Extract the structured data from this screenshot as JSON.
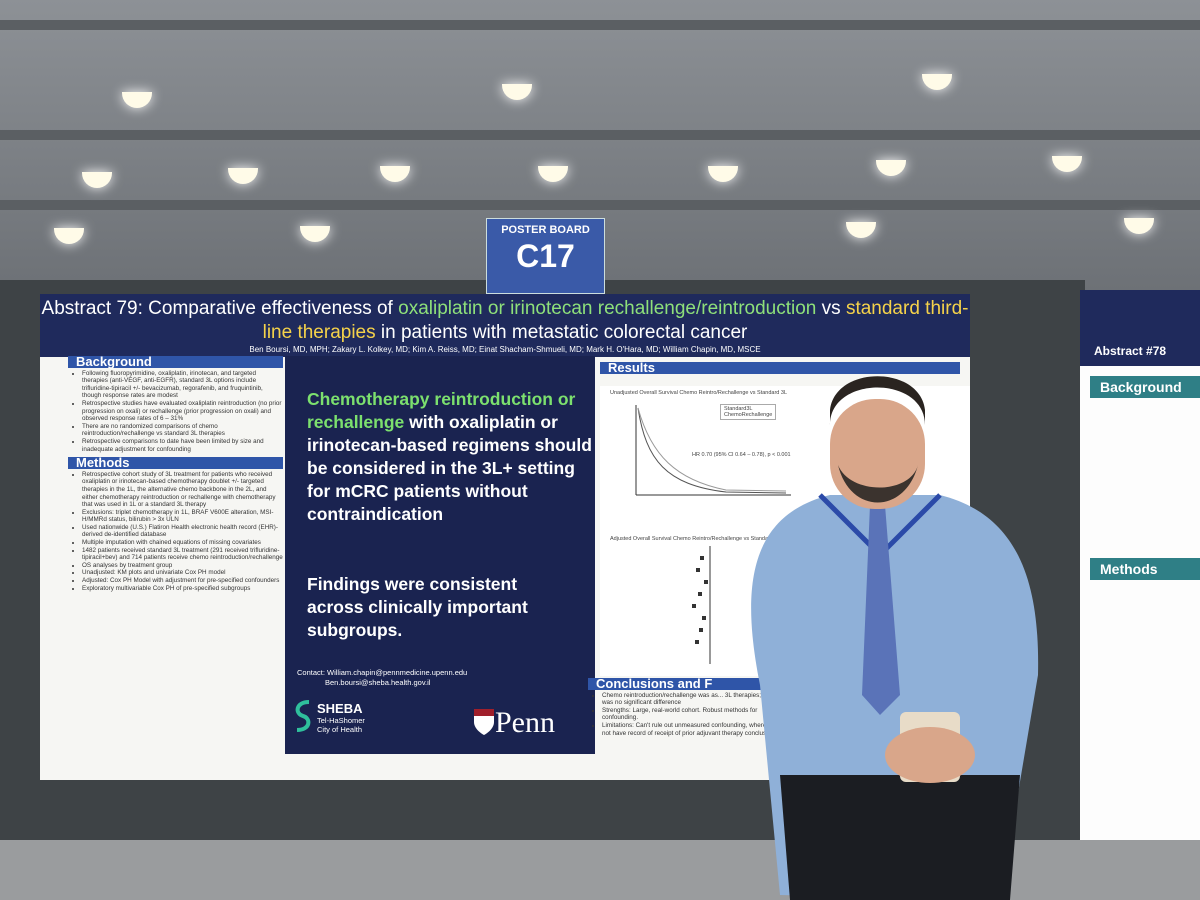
{
  "sign": {
    "label": "POSTER BOARD",
    "board": "C17"
  },
  "poster": {
    "title": {
      "prefix": "Abstract 79: Comparative effectiveness of",
      "drug": "oxaliplatin or irinotecan rechallenge/reintroduction",
      "vs": "vs",
      "standard": "standard third-line therapies",
      "suffix": "in patients with metastatic colorectal cancer"
    },
    "authors": "Ben Boursi, MD, MPH; Zakary L. Kolkey, MD; Kim A. Reiss, MD; Einat Shacham-Shmueli, MD; Mark H. O'Hara, MD; William Chapin, MD, MSCE",
    "background": {
      "heading": "Background",
      "bullets": [
        "Following fluoropyrimidine, oxaliplatin, irinotecan, and targeted therapies (anti-VEGF, anti-EGFR), standard 3L options include trifluridine-tipiracil +/- bevacizumab, regorafenib, and fruquintinib, though response rates are modest",
        "Retrospective studies have evaluated oxaliplatin reintroduction (no prior progression on oxali) or rechallenge (prior progression on oxali) and observed response rates of 6 – 31%",
        "There are no randomized comparisons of chemo reintroduction/rechallenge vs standard 3L therapies",
        "Retrospective comparisons to date have been limited by size and inadequate adjustment for confounding"
      ]
    },
    "methods": {
      "heading": "Methods",
      "bullets": [
        "Retrospective cohort study of 3L treatment for patients who received oxaliplatin or irinotecan-based chemotherapy doublet +/- targeted therapies in the 1L, the alternative chemo backbone in the 2L, and either chemotherapy reintroduction or rechallenge with chemotherapy that was used in 1L or a standard 3L therapy",
        "Exclusions: triplet chemotherapy in 1L, BRAF V600E alteration, MSI-H/MMRd status, bilirubin > 3x ULN",
        "Used nationwide (U.S.) Flatiron Health electronic health record (EHR)-derived de-identified database",
        "Multiple imputation with chained equations of missing covariates",
        "1482 patients received standard 3L treatment (291 received trifluridine-tipiracil+bev) and 714 patients receive chemo reintroduction/rechallenge",
        "OS analyses by treatment group",
        "Unadjusted: KM plots and univariate Cox PH model",
        "Adjusted: Cox PH Model with adjustment for pre-specified confounders",
        "Exploratory multivariable Cox PH of pre-specified subgroups"
      ]
    },
    "message": {
      "highlight": "Chemotherapy reintroduction or rechallenge",
      "rest": "with oxaliplatin or irinotecan-based regimens should be considered in the 3L+ setting for mCRC patients without contraindication",
      "findings": "Findings were consistent across clinically important subgroups."
    },
    "contact": [
      "Contact: William.chapin@pennmedicine.upenn.edu",
      "Ben.boursi@sheba.health.gov.il"
    ],
    "logos": {
      "sheba": "SHEBA",
      "sheba_sub": "Tel-HaShomer City of Health",
      "penn": "Penn"
    },
    "results": {
      "heading": "Results",
      "plot_title": "Unadjusted Overall Survival Chemo Reintro/Rechallenge vs Standard 3L",
      "legend": [
        "Standard3L",
        "ChemoRechallenge"
      ],
      "hr": "HR 0.70 (95% CI 0.64 – 0.78), p < 0.001",
      "forest_title": "Adjusted Overall Survival Chemo Reintro/Rechallenge vs Standard 3L"
    },
    "conclusions": {
      "heading": "Conclusions and F",
      "bullets": [
        "Chemo reintroduction/rechallenge was as... 3L therapies; there was no significant difference",
        "Strengths: Large, real-world cohort. Robust methods for confounding.",
        "Limitations: Can't rule out unmeasured confounding, where we do not have record of receipt of prior adjuvant therapy conclusions."
      ]
    }
  },
  "side_poster": {
    "abstract": "Abstract #78",
    "background": "Background",
    "methods": "Methods"
  }
}
